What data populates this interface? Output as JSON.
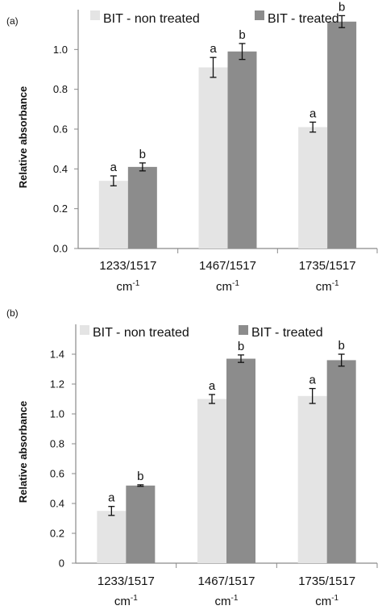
{
  "colors": {
    "non_treated": "#e4e4e4",
    "treated": "#8c8c8c",
    "axis": "#8a8a8a",
    "error": "#111111"
  },
  "chart_data": [
    {
      "type": "bar",
      "panel_label": "(a)",
      "ylabel": "Relative absorbance",
      "ylim": [
        0,
        1.2
      ],
      "yticks": [
        "0.0",
        "0.2",
        "0.4",
        "0.6",
        "0.8",
        "1.0"
      ],
      "categories": [
        {
          "main": "1233/1517",
          "unit": "cm",
          "sup": "-1"
        },
        {
          "main": "1467/1517",
          "unit": "cm",
          "sup": "-1"
        },
        {
          "main": "1735/1517",
          "unit": "cm",
          "sup": "-1"
        }
      ],
      "legend_position": "top",
      "series": [
        {
          "name": "BIT - non treated",
          "values": [
            0.34,
            0.91,
            0.61
          ],
          "errors": [
            0.025,
            0.05,
            0.025
          ],
          "labels": [
            "a",
            "a",
            "a"
          ]
        },
        {
          "name": "BIT - treated",
          "values": [
            0.41,
            0.99,
            1.14
          ],
          "errors": [
            0.02,
            0.04,
            0.03
          ],
          "labels": [
            "b",
            "b",
            "b"
          ]
        }
      ]
    },
    {
      "type": "bar",
      "panel_label": "(b)",
      "ylabel": "Relative absorbance",
      "ylim": [
        0,
        1.6
      ],
      "yticks": [
        "0",
        "0.2",
        "0.4",
        "0.6",
        "0.8",
        "1.0",
        "1.2",
        "1.4"
      ],
      "categories": [
        {
          "main": "1233/1517",
          "unit": "cm",
          "sup": "-1"
        },
        {
          "main": "1467/1517",
          "unit": "cm",
          "sup": "-1"
        },
        {
          "main": "1735/1517",
          "unit": "cm",
          "sup": "-1"
        }
      ],
      "legend_position": "top",
      "series": [
        {
          "name": "BIT - non treated",
          "values": [
            0.35,
            1.1,
            1.12
          ],
          "errors": [
            0.03,
            0.03,
            0.05
          ],
          "labels": [
            "a",
            "a",
            "a"
          ]
        },
        {
          "name": "BIT - treated",
          "values": [
            0.52,
            1.37,
            1.36
          ],
          "errors": [
            0.005,
            0.025,
            0.04
          ],
          "labels": [
            "b",
            "b",
            "b"
          ]
        }
      ]
    }
  ]
}
